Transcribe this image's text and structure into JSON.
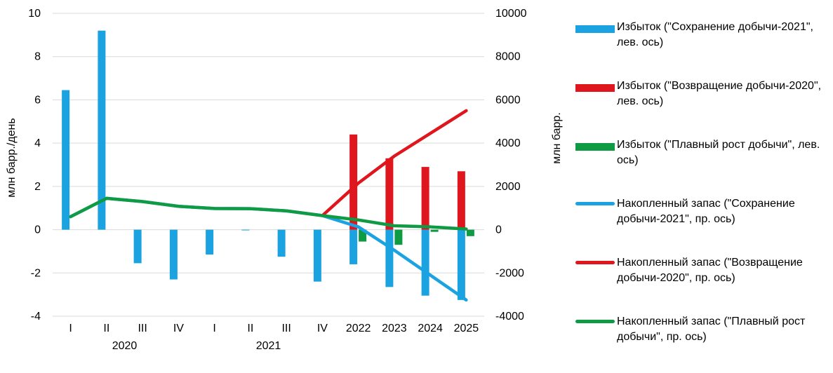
{
  "chart_data": {
    "type": "bar",
    "title": "",
    "ylabel_left": "млн барр./день",
    "ylabel_right": "млн барр.",
    "ylim_left": [
      -4,
      10
    ],
    "ylim_right": [
      -4000,
      10000
    ],
    "yticks_left": [
      "-4",
      "-2",
      "0",
      "2",
      "4",
      "6",
      "8",
      "10"
    ],
    "yticks_right": [
      "-4000",
      "-2000",
      "0",
      "2000",
      "4000",
      "6000",
      "8000",
      "10000"
    ],
    "categories": [
      "I",
      "II",
      "III",
      "IV",
      "I",
      "II",
      "III",
      "IV",
      "2022",
      "2023",
      "2024",
      "2025"
    ],
    "year_labels": [
      {
        "label": "2020",
        "span": [
          0,
          3
        ]
      },
      {
        "label": "2021",
        "span": [
          4,
          7
        ]
      }
    ],
    "grid": true,
    "legend_position": "right",
    "bar_series": [
      {
        "name": "Избыток (\"Сохранение добычи-2021\", лев. ось)",
        "color": "#1aa3e0",
        "values": [
          6.45,
          9.2,
          -1.55,
          -2.3,
          -1.15,
          -0.02,
          -1.25,
          -2.4,
          -1.6,
          -2.65,
          -3.05,
          -3.25
        ]
      },
      {
        "name": "Избыток (\"Возвращение добычи-2020\", лев. ось)",
        "color": "#e0161f",
        "values": [
          null,
          null,
          null,
          null,
          null,
          null,
          null,
          null,
          4.4,
          3.3,
          2.9,
          2.7
        ]
      },
      {
        "name": "Избыток (\"Плавный рост добычи\", лев. ось)",
        "color": "#0f9a44",
        "values": [
          null,
          null,
          null,
          null,
          null,
          null,
          null,
          null,
          -0.55,
          -0.7,
          -0.1,
          -0.3
        ]
      }
    ],
    "line_series": [
      {
        "name": "Накопленный запас (\"Сохранение добычи-2021\", пр. ось)",
        "color": "#1aa3e0",
        "values": [
          600,
          1450,
          1300,
          1080,
          980,
          970,
          870,
          650,
          130,
          -950,
          -2100,
          -3250
        ]
      },
      {
        "name": "Накопленный запас (\"Возвращение добычи-2020\", пр. ось)",
        "color": "#e0161f",
        "values": [
          null,
          null,
          null,
          null,
          null,
          null,
          null,
          650,
          2150,
          3400,
          4450,
          5500
        ]
      },
      {
        "name": "Накопленный запас (\"Плавный рост добычи\", пр. ось)",
        "color": "#0f9a44",
        "values": [
          600,
          1450,
          1300,
          1080,
          980,
          970,
          870,
          650,
          450,
          180,
          130,
          30
        ]
      }
    ]
  },
  "legend": {
    "items": [
      {
        "label": "Избыток (\"Сохранение добычи-2021\", лев. ось)",
        "color": "#1aa3e0",
        "kind": "bar"
      },
      {
        "label": "Избыток (\"Возвращение добычи-2020\", лев. ось)",
        "color": "#e0161f",
        "kind": "bar"
      },
      {
        "label": "Избыток (\"Плавный рост добычи\", лев. ось)",
        "color": "#0f9a44",
        "kind": "bar"
      },
      {
        "label": "Накопленный запас (\"Сохранение добычи-2021\", пр. ось)",
        "color": "#1aa3e0",
        "kind": "line"
      },
      {
        "label": "Накопленный запас (\"Возвращение добычи-2020\", пр. ось)",
        "color": "#e0161f",
        "kind": "line"
      },
      {
        "label": "Накопленный запас (\"Плавный рост добычи\", пр. ось)",
        "color": "#0f9a44",
        "kind": "line"
      }
    ]
  }
}
